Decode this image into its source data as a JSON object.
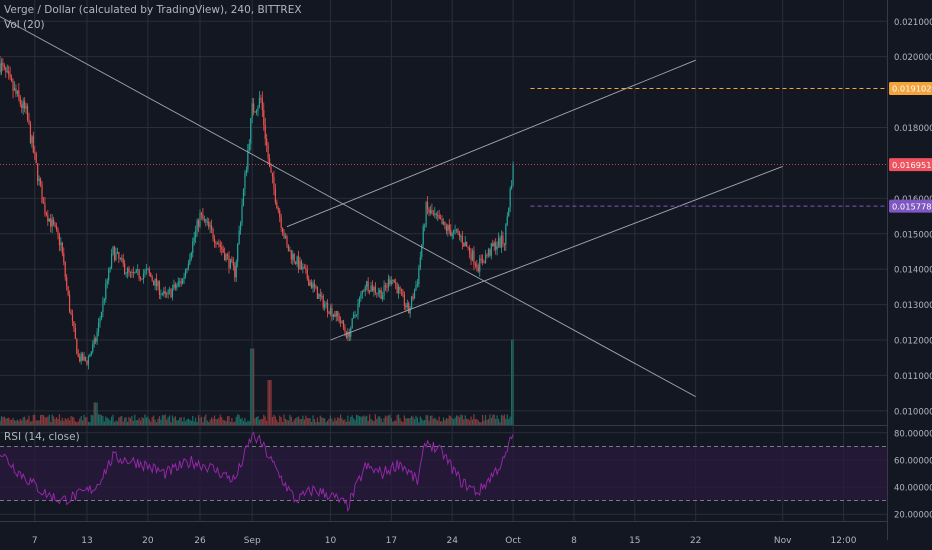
{
  "header": {
    "symbol_line": "Verge / Dollar (calculated by TradingView), 240, BITTREX",
    "volume_label": "Vol (20)",
    "rsi_label": "RSI (14, close)"
  },
  "colors": {
    "background": "#131722",
    "grid": "#2a2e39",
    "candle_up": "#26a69a",
    "candle_down": "#ef5350",
    "volume_up": "#1e6b63",
    "volume_down": "#8a3a3c",
    "rsi_line": "#9c27b0",
    "rsi_band": "#2a1b3d",
    "trend_line": "#a3a6af",
    "price_last": "#f0525e",
    "price_orange": "#f4a33b",
    "price_purple": "#7e57c2",
    "axis_text": "#b2b5be"
  },
  "chart_data": [
    {
      "type": "candlestick",
      "title": "Verge / Dollar (calculated by TradingView), 240, BITTREX",
      "ylim": [
        0.0096,
        0.0216
      ],
      "y_axis_labels": [
        "0.02100000",
        "0.02000000",
        "0.01800000",
        "0.01600000",
        "0.01500000",
        "0.01400000",
        "0.01300000",
        "0.01200000",
        "0.01100000",
        "0.01000000"
      ],
      "y_axis_values": [
        0.021,
        0.02,
        0.018,
        0.016,
        0.015,
        0.014,
        0.013,
        0.012,
        0.011,
        0.01
      ],
      "x_tick_labels": [
        "7",
        "13",
        "20",
        "26",
        "Sep",
        "10",
        "17",
        "24",
        "Oct",
        "8",
        "15",
        "22",
        "Nov",
        "12:00"
      ],
      "x_tick_dates": [
        "2018-08-07",
        "2018-08-13",
        "2018-08-20",
        "2018-08-26",
        "2018-09-01",
        "2018-09-10",
        "2018-09-17",
        "2018-09-24",
        "2018-10-01",
        "2018-10-08",
        "2018-10-15",
        "2018-10-22",
        "2018-11-01",
        "2018-11-08"
      ],
      "x_range": [
        "2018-08-03",
        "2018-11-13"
      ],
      "price_path_dates": [
        "2018-08-03",
        "2018-08-04",
        "2018-08-06",
        "2018-08-08",
        "2018-08-10",
        "2018-08-11",
        "2018-08-12",
        "2018-08-13",
        "2018-08-14",
        "2018-08-16",
        "2018-08-18",
        "2018-08-20",
        "2018-08-22",
        "2018-08-24",
        "2018-08-26",
        "2018-08-28",
        "2018-08-30",
        "2018-09-01",
        "2018-09-02",
        "2018-09-03",
        "2018-09-05",
        "2018-09-07",
        "2018-09-09",
        "2018-09-11",
        "2018-09-12",
        "2018-09-14",
        "2018-09-16",
        "2018-09-17",
        "2018-09-19",
        "2018-09-20",
        "2018-09-21",
        "2018-09-23",
        "2018-09-25",
        "2018-09-27",
        "2018-09-29",
        "2018-09-30",
        "2018-10-01"
      ],
      "price_path_values": [
        0.0198,
        0.0193,
        0.0184,
        0.0158,
        0.0147,
        0.0129,
        0.0115,
        0.0114,
        0.012,
        0.0145,
        0.0138,
        0.0139,
        0.0132,
        0.0137,
        0.0155,
        0.0148,
        0.0139,
        0.0185,
        0.0188,
        0.0168,
        0.0146,
        0.0139,
        0.0131,
        0.0126,
        0.0121,
        0.0136,
        0.0133,
        0.0138,
        0.0128,
        0.0137,
        0.0157,
        0.0152,
        0.0149,
        0.0141,
        0.0147,
        0.0148,
        0.0169
      ],
      "last_price": 0.0169513,
      "last_price_label": "0.01695130",
      "horizontal_levels": [
        {
          "value": 0.01910277,
          "label": "0.01910277",
          "color": "#f4a33b",
          "style": "dashed"
        },
        {
          "value": 0.01577862,
          "label": "0.01577862",
          "color": "#7e57c2",
          "style": "dashed"
        }
      ],
      "trend_lines": [
        {
          "from": [
            "2018-08-01",
            0.0214
          ],
          "to": [
            "2018-10-22",
            0.0104
          ]
        },
        {
          "from": [
            "2018-09-10",
            0.012
          ],
          "to": [
            "2018-11-01",
            0.0169
          ]
        },
        {
          "from": [
            "2018-09-05",
            0.0152
          ],
          "to": [
            "2018-10-22",
            0.0199
          ]
        }
      ],
      "volume_series": "Vol (20)",
      "volume_spikes": [
        {
          "date": "2018-08-14",
          "relative": 0.25
        },
        {
          "date": "2018-09-01",
          "relative": 0.85
        },
        {
          "date": "2018-09-03",
          "relative": 0.5
        },
        {
          "date": "2018-10-01",
          "relative": 0.95
        }
      ]
    },
    {
      "type": "line",
      "title": "RSI (14, close)",
      "ylim": [
        15,
        85
      ],
      "y_axis_labels": [
        "80.00000",
        "60.00000",
        "40.00000",
        "20.00000"
      ],
      "y_axis_values": [
        80,
        60,
        40,
        20
      ],
      "band": [
        30,
        70
      ],
      "series": [
        {
          "name": "RSI (14, close)",
          "x": [
            "2018-08-03",
            "2018-08-05",
            "2018-08-08",
            "2018-08-10",
            "2018-08-12",
            "2018-08-14",
            "2018-08-16",
            "2018-08-19",
            "2018-08-22",
            "2018-08-25",
            "2018-08-27",
            "2018-08-30",
            "2018-09-01",
            "2018-09-02",
            "2018-09-04",
            "2018-09-06",
            "2018-09-08",
            "2018-09-10",
            "2018-09-12",
            "2018-09-14",
            "2018-09-16",
            "2018-09-18",
            "2018-09-20",
            "2018-09-21",
            "2018-09-23",
            "2018-09-25",
            "2018-09-27",
            "2018-09-29",
            "2018-09-30",
            "2018-10-01"
          ],
          "values": [
            66,
            52,
            36,
            30,
            34,
            40,
            62,
            58,
            50,
            59,
            55,
            45,
            78,
            73,
            50,
            30,
            38,
            34,
            26,
            55,
            50,
            58,
            44,
            74,
            64,
            44,
            36,
            52,
            60,
            80
          ]
        }
      ]
    }
  ]
}
